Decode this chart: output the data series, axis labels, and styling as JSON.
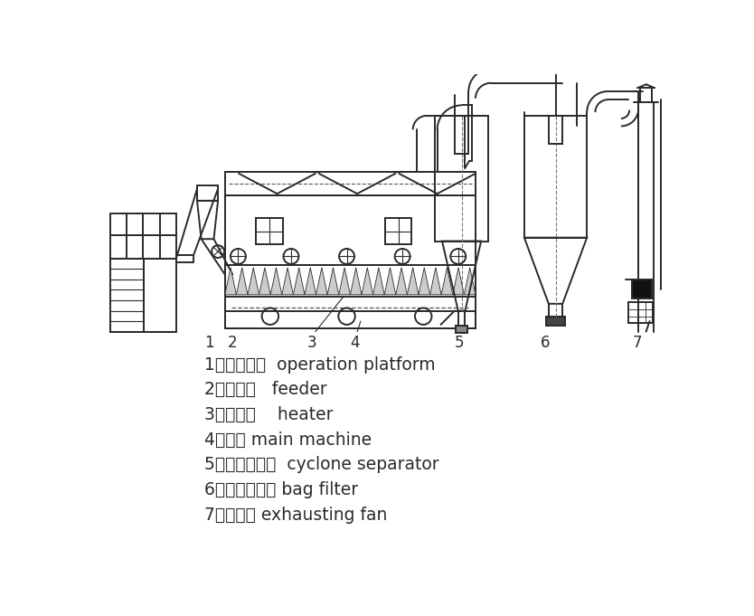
{
  "bg_color": "#ffffff",
  "line_color": "#2a2a2a",
  "lw": 1.4,
  "legend_items": [
    "1、操作平台  operation platform",
    "2、加料器   feeder",
    "3、加热器    heater",
    "4、主机 main machine",
    "5、旋风分离器  cyclone separator",
    "6、布袋除尘器 bag filter",
    "7、引风机 exhausting fan"
  ],
  "labels": [
    "1",
    "2",
    "3",
    "4",
    "5",
    "6",
    "7"
  ],
  "font_size_legend": 13.5,
  "font_size_label": 12
}
